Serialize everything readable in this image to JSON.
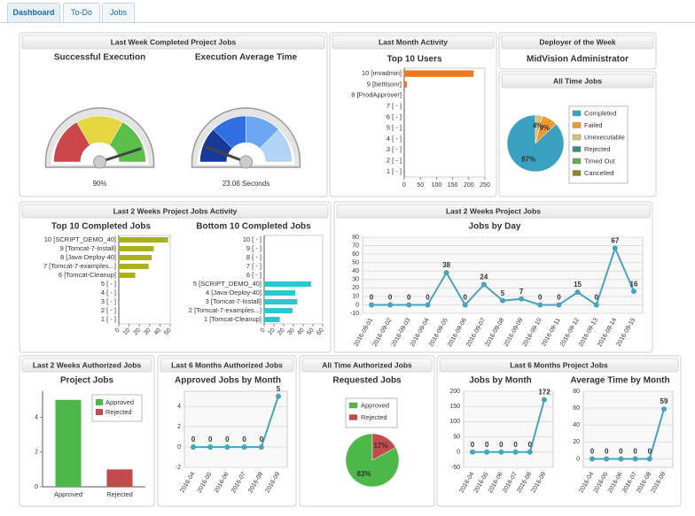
{
  "tabs": [
    "Dashboard",
    "To-Do",
    "Jobs"
  ],
  "panels": [
    {
      "title": "Last Week Completed Project Jobs",
      "chart_data": [
        {
          "type": "gauge",
          "title": "Successful Execution",
          "values": [
            90
          ],
          "value_labels": [
            "90%"
          ],
          "ylim": [
            0,
            100
          ],
          "colors": [
            "#c9474a",
            "#e6d640",
            "#5cbf4a"
          ]
        },
        {
          "type": "gauge",
          "title": "Execution Average Time",
          "values": [
            23.06
          ],
          "value_labels": [
            "23.06 Seconds"
          ],
          "ylim": [
            0,
            200
          ],
          "colors": [
            "#16399a",
            "#2f6fe0",
            "#6aa6f2",
            "#b3d3f6"
          ]
        }
      ]
    },
    {
      "title": "Last Month Activity",
      "chart_data": [
        {
          "type": "hbar",
          "title": "Top 10 Users",
          "categories": [
            "10 [mvadmin]",
            "9 [bettisonr]",
            "8 [ProdApprover]",
            "7 [ - ]",
            "6 [ - ]",
            "5 [ - ]",
            "4 [ - ]",
            "3 [ - ]",
            "2 [ - ]",
            "1 [ - ]"
          ],
          "values": [
            215,
            8,
            1,
            null,
            null,
            null,
            null,
            null,
            null,
            null
          ],
          "color": "#f07818",
          "xlim": [
            0,
            250
          ],
          "xticks": [
            0,
            50,
            100,
            150,
            200,
            250
          ]
        }
      ]
    },
    {
      "title": "Deployer of the Week",
      "text": "MidVision Administrator"
    },
    {
      "title": "All Time Jobs",
      "chart_data": [
        {
          "type": "pie",
          "categories": [
            "Completed",
            "Failed",
            "Unexecutable",
            "Rejected",
            "Timed Out",
            "Cancelled"
          ],
          "values": [
            87,
            9,
            4,
            0,
            0,
            0
          ],
          "value_labels": [
            "87%",
            "9%",
            "4%",
            null,
            null,
            null
          ],
          "colors": [
            "#3aa2c0",
            "#ee9a2c",
            "#d2bf7a",
            "#3c8c7c",
            "#6aa84f",
            "#8a8a20"
          ]
        }
      ]
    },
    {
      "title": "Last 2 Weeks Project Jobs Activity",
      "chart_data": [
        {
          "type": "hbar",
          "title": "Top 10 Completed Jobs",
          "categories": [
            "10 [SCRIPT_DEMO_40]",
            "9 [Tomcat-7-Install]",
            "8 [Java-Deploy-40]",
            "7 [Tomcat-7-examples...]",
            "6 [Tomcat-Cleanup]",
            "5 [ - ]",
            "4 [ - ]",
            "3 [ - ]",
            "2 [ - ]",
            "1 [ - ]"
          ],
          "values": [
            48,
            34,
            32,
            29,
            16,
            null,
            null,
            null,
            null,
            null
          ],
          "color": "#a9b21c",
          "xlim": [
            0,
            50
          ],
          "xticks": [
            0,
            10,
            20,
            30,
            40,
            50
          ]
        },
        {
          "type": "hbar",
          "title": "Bottom 10 Completed Jobs",
          "categories": [
            "10 [ - ]",
            "9 [ - ]",
            "8 [ - ]",
            "7 [ - ]",
            "6 [ - ]",
            "5 [SCRIPT_DEMO_40]",
            "4 [Java-Deploy-40]",
            "3 [Tomcat-7-Install]",
            "2 [Tomcat-7-examples...]",
            "1 [Tomcat-Cleanup]"
          ],
          "values": [
            null,
            null,
            null,
            null,
            null,
            48,
            32,
            34,
            29,
            16
          ],
          "color": "#2cc6d0",
          "xlim": [
            0,
            60
          ],
          "xticks": [
            0,
            10,
            20,
            30,
            40,
            50,
            60
          ]
        }
      ]
    },
    {
      "title": "Last 2 Weeks Project Jobs",
      "chart_data": [
        {
          "type": "line",
          "title": "Jobs by Day",
          "categories": [
            "2016-09-01",
            "2016-09-02",
            "2016-09-03",
            "2016-09-04",
            "2016-09-05",
            "2016-09-06",
            "2016-09-07",
            "2016-09-08",
            "2016-09-09",
            "2016-09-10",
            "2016-09-11",
            "2016-09-12",
            "2016-09-13",
            "2016-09-14",
            "2016-09-15"
          ],
          "values": [
            0,
            0,
            0,
            0,
            38,
            0,
            24,
            5,
            7,
            0,
            0,
            15,
            0,
            67,
            16
          ],
          "color": "#4aa3bd",
          "ylim": [
            -10,
            80
          ],
          "yticks": [
            -10,
            0,
            10,
            20,
            30,
            40,
            50,
            60,
            70,
            80
          ],
          "grid": true
        }
      ]
    },
    {
      "title": "Last 2 Weeks Authorized Jobs",
      "chart_data": [
        {
          "type": "vbar",
          "title": "Project Jobs",
          "categories": [
            "Approved",
            "Rejected"
          ],
          "values": [
            5,
            1
          ],
          "colors": [
            "#4cb848",
            "#c24a4a"
          ],
          "ylim": [
            0,
            5.5
          ],
          "yticks": [
            0,
            2,
            4
          ]
        }
      ]
    },
    {
      "title": "Last 6 Months Authorized Jobs",
      "chart_data": [
        {
          "type": "line",
          "title": "Approved Jobs by Month",
          "categories": [
            "2016-04",
            "2016-05",
            "2016-06",
            "2016-07",
            "2016-08",
            "2016-09"
          ],
          "values": [
            0,
            0,
            0,
            0,
            0,
            5
          ],
          "color": "#4aa3bd",
          "ylim": [
            -2,
            5.5
          ],
          "yticks": [
            -2,
            0,
            2,
            4
          ],
          "grid": true
        }
      ]
    },
    {
      "title": "All Time Authorized Jobs",
      "chart_data": [
        {
          "type": "pie",
          "title": "Requested Jobs",
          "categories": [
            "Approved",
            "Rejected"
          ],
          "values": [
            83,
            17
          ],
          "value_labels": [
            "83%",
            "17%"
          ],
          "colors": [
            "#4cb848",
            "#c24a4a"
          ]
        }
      ]
    },
    {
      "title": "Last 6 Months Project Jobs",
      "chart_data": [
        {
          "type": "line",
          "title": "Jobs by Month",
          "categories": [
            "2016-04",
            "2016-05",
            "2016-06",
            "2016-07",
            "2016-08",
            "2016-09"
          ],
          "values": [
            0,
            0,
            0,
            0,
            0,
            172
          ],
          "color": "#4aa3bd",
          "ylim": [
            -50,
            200
          ],
          "yticks": [
            -50,
            0,
            50,
            100,
            150,
            200
          ],
          "grid": true
        },
        {
          "type": "line",
          "title": "Average Time by Month",
          "categories": [
            "2016-04",
            "2016-05",
            "2016-06",
            "2016-07",
            "2016-08",
            "2016-09"
          ],
          "values": [
            0,
            0,
            0,
            0,
            0,
            59
          ],
          "color": "#4aa3bd",
          "ylim": [
            -10,
            80
          ],
          "yticks": [
            0,
            20,
            40,
            60,
            80
          ],
          "grid": true
        }
      ]
    }
  ]
}
